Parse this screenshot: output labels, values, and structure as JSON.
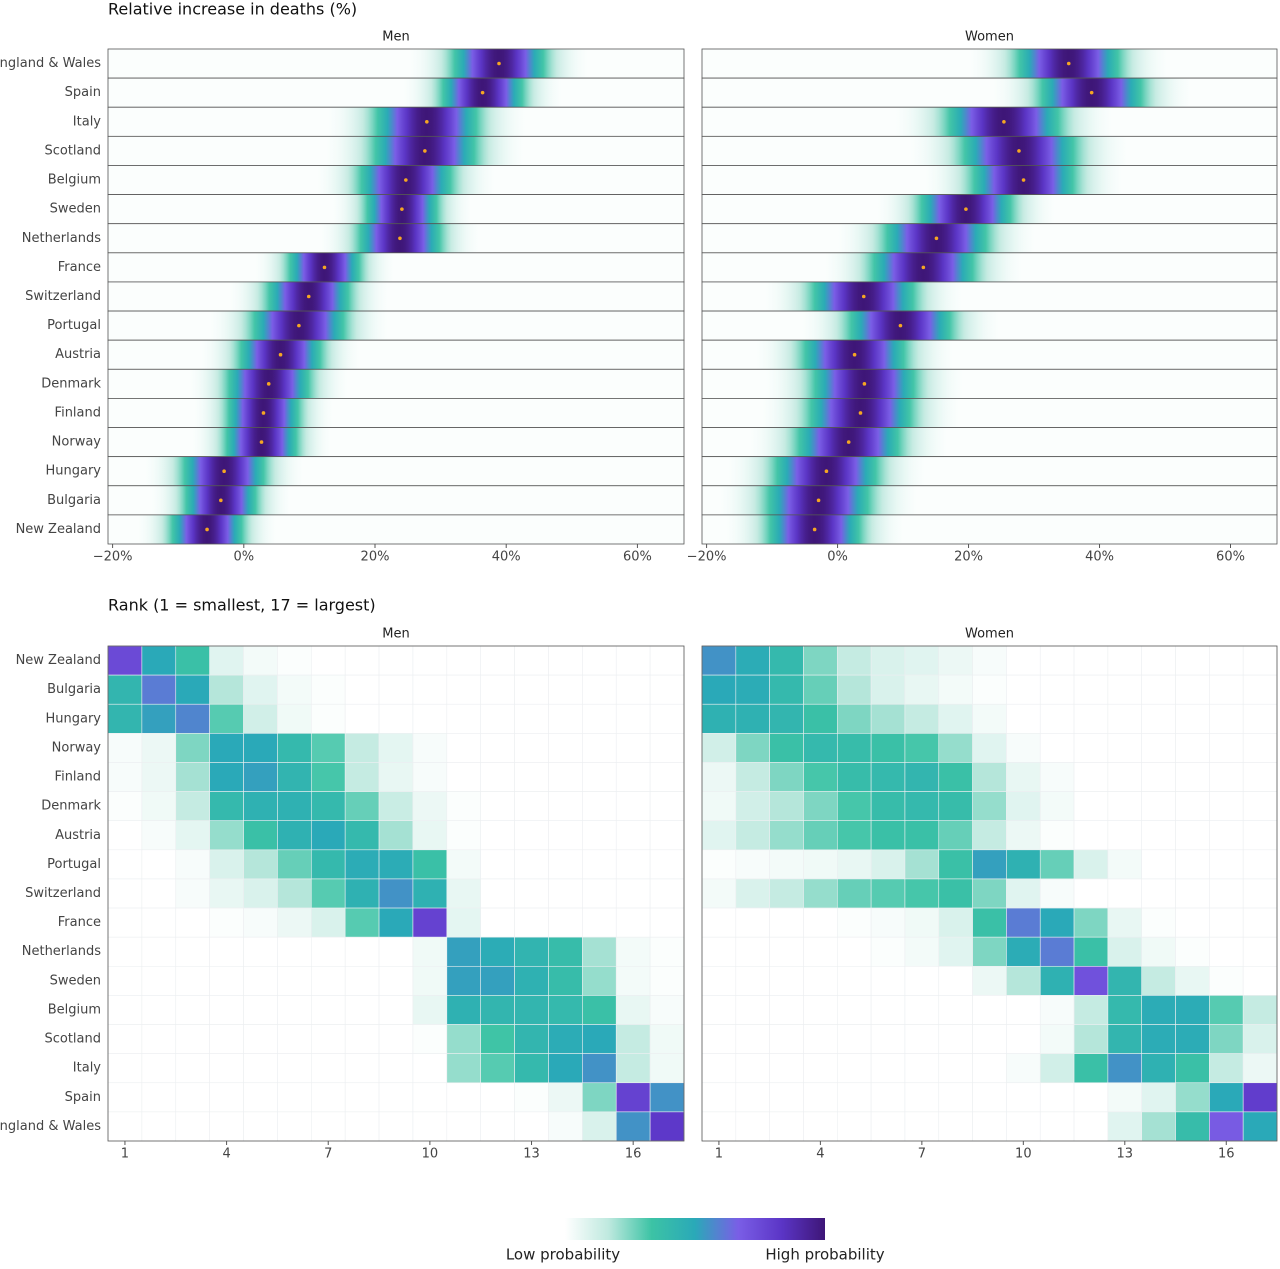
{
  "chart_data": [
    {
      "type": "density-strip",
      "title": "Relative increase in deaths (%)",
      "categories": [
        "England & Wales",
        "Spain",
        "Italy",
        "Scotland",
        "Belgium",
        "Sweden",
        "Netherlands",
        "France",
        "Switzerland",
        "Portugal",
        "Austria",
        "Denmark",
        "Finland",
        "Norway",
        "Hungary",
        "Bulgaria",
        "New Zealand"
      ],
      "xlim": [
        -20.7,
        67.1
      ],
      "xticks": [
        {
          "value": -20,
          "label": "−20%"
        },
        {
          "value": 0,
          "label": "0%"
        },
        {
          "value": 20,
          "label": "20%"
        },
        {
          "value": 40,
          "label": "40%"
        },
        {
          "value": 60,
          "label": "60%"
        }
      ],
      "point_color": "#f5a623",
      "colorscale": [
        "#ffffff",
        "#bfe9df",
        "#3cc3a5",
        "#2aa9b8",
        "#7a5ee6",
        "#5b35c6",
        "#3e1677"
      ],
      "panels": [
        {
          "title": "Men",
          "values": [
            38.9,
            36.4,
            27.9,
            27.6,
            24.7,
            24.1,
            23.8,
            12.3,
            9.9,
            8.4,
            5.6,
            3.8,
            3.0,
            2.7,
            -3.0,
            -3.5,
            -5.6
          ],
          "spread": [
            4.5,
            4,
            5,
            5,
            4.5,
            3.5,
            4,
            3.5,
            4,
            4.5,
            4,
            4,
            3.5,
            3.5,
            4,
            3.5,
            3.5
          ]
        },
        {
          "title": "Women",
          "values": [
            35.3,
            38.8,
            25.4,
            27.7,
            28.4,
            19.6,
            15.1,
            13.1,
            4.0,
            9.6,
            2.6,
            4.1,
            3.5,
            1.7,
            -1.7,
            -2.9,
            -3.5
          ],
          "spread": [
            5,
            5,
            5.5,
            5.5,
            5,
            4.5,
            5,
            5,
            5,
            5,
            5,
            5,
            5,
            5,
            5,
            5,
            4.5
          ]
        }
      ]
    },
    {
      "type": "heatmap",
      "title": "Rank (1 = smallest, 17 = largest)",
      "categories": [
        "New Zealand",
        "Bulgaria",
        "Hungary",
        "Norway",
        "Finland",
        "Denmark",
        "Austria",
        "Portugal",
        "Switzerland",
        "France",
        "Netherlands",
        "Sweden",
        "Belgium",
        "Scotland",
        "Italy",
        "Spain",
        "England & Wales"
      ],
      "x": [
        1,
        2,
        3,
        4,
        5,
        6,
        7,
        8,
        9,
        10,
        11,
        12,
        13,
        14,
        15,
        16,
        17
      ],
      "xlim": [
        0.5,
        17.5
      ],
      "xticks": [
        1,
        4,
        7,
        10,
        13,
        16
      ],
      "colorscale": [
        "#ffffff",
        "#bfe9df",
        "#3cc3a5",
        "#2aa9b8",
        "#7a5ee6",
        "#5b35c6",
        "#3e1677"
      ],
      "legend": {
        "low": "Low probability",
        "high": "High probability"
      },
      "panels": [
        {
          "title": "Men",
          "values": [
            [
              75,
              50,
              35,
              8,
              3,
              1,
              0,
              0,
              0,
              0,
              0,
              0,
              0,
              0,
              0,
              0,
              0
            ],
            [
              42,
              60,
              50,
              18,
              8,
              3,
              1,
              0,
              0,
              0,
              0,
              0,
              0,
              0,
              0,
              0,
              0
            ],
            [
              42,
              52,
              58,
              30,
              12,
              4,
              1,
              0,
              0,
              0,
              0,
              0,
              0,
              0,
              0,
              0,
              0
            ],
            [
              2,
              5,
              25,
              50,
              50,
              40,
              30,
              15,
              7,
              2,
              0,
              0,
              0,
              0,
              0,
              0,
              0
            ],
            [
              2,
              5,
              20,
              50,
              52,
              43,
              32,
              15,
              6,
              2,
              0,
              0,
              0,
              0,
              0,
              0,
              0
            ],
            [
              1,
              4,
              15,
              40,
              45,
              45,
              40,
              28,
              14,
              5,
              1,
              0,
              0,
              0,
              0,
              0,
              0
            ],
            [
              0,
              2,
              7,
              22,
              35,
              45,
              50,
              40,
              20,
              6,
              1,
              0,
              0,
              0,
              0,
              0,
              0
            ],
            [
              0,
              0,
              2,
              10,
              18,
              28,
              40,
              48,
              48,
              35,
              3,
              0,
              0,
              0,
              0,
              0,
              0
            ],
            [
              0,
              0,
              2,
              6,
              10,
              18,
              30,
              45,
              55,
              45,
              6,
              0,
              0,
              0,
              0,
              0,
              0
            ],
            [
              0,
              0,
              0,
              1,
              2,
              5,
              10,
              30,
              50,
              78,
              7,
              0,
              0,
              0,
              0,
              0,
              0
            ],
            [
              0,
              0,
              0,
              0,
              0,
              0,
              0,
              0,
              0,
              4,
              52,
              48,
              43,
              38,
              20,
              3,
              1
            ],
            [
              0,
              0,
              0,
              0,
              0,
              0,
              0,
              0,
              0,
              4,
              52,
              52,
              45,
              38,
              22,
              3,
              1
            ],
            [
              0,
              0,
              0,
              0,
              0,
              0,
              0,
              0,
              0,
              6,
              45,
              42,
              42,
              40,
              35,
              6,
              2
            ],
            [
              0,
              0,
              0,
              0,
              0,
              0,
              0,
              0,
              0,
              1,
              22,
              33,
              42,
              48,
              50,
              15,
              4
            ],
            [
              0,
              0,
              0,
              0,
              0,
              0,
              0,
              0,
              0,
              0,
              22,
              30,
              40,
              50,
              55,
              15,
              4
            ],
            [
              0,
              0,
              0,
              0,
              0,
              0,
              0,
              0,
              0,
              0,
              0,
              0,
              1,
              5,
              25,
              78,
              55
            ],
            [
              0,
              0,
              0,
              0,
              0,
              0,
              0,
              0,
              0,
              0,
              0,
              0,
              0,
              2,
              10,
              55,
              82
            ]
          ]
        },
        {
          "title": "Women",
          "values": [
            [
              55,
              48,
              40,
              25,
              15,
              10,
              8,
              5,
              2,
              0,
              0,
              0,
              0,
              0,
              0,
              0,
              0
            ],
            [
              50,
              48,
              40,
              28,
              18,
              10,
              6,
              3,
              1,
              0,
              0,
              0,
              0,
              0,
              0,
              0,
              0
            ],
            [
              45,
              45,
              42,
              35,
              25,
              20,
              15,
              8,
              3,
              0,
              0,
              0,
              0,
              0,
              0,
              0,
              0
            ],
            [
              12,
              25,
              35,
              40,
              38,
              35,
              32,
              22,
              8,
              2,
              0,
              0,
              0,
              0,
              0,
              0,
              0
            ],
            [
              5,
              15,
              25,
              32,
              38,
              40,
              42,
              35,
              18,
              6,
              2,
              0,
              0,
              0,
              0,
              0,
              0
            ],
            [
              4,
              12,
              18,
              25,
              32,
              38,
              40,
              38,
              22,
              8,
              3,
              0,
              0,
              0,
              0,
              0,
              0
            ],
            [
              8,
              15,
              22,
              28,
              32,
              35,
              35,
              28,
              15,
              5,
              1,
              0,
              0,
              0,
              0,
              0,
              0
            ],
            [
              1,
              2,
              3,
              4,
              6,
              10,
              20,
              35,
              52,
              45,
              28,
              10,
              3,
              0,
              0,
              0,
              0
            ],
            [
              3,
              10,
              15,
              22,
              28,
              30,
              32,
              35,
              25,
              8,
              2,
              0,
              0,
              0,
              0,
              0,
              0
            ],
            [
              0,
              0,
              0,
              0,
              1,
              2,
              4,
              10,
              35,
              60,
              50,
              25,
              6,
              1,
              0,
              0,
              0
            ],
            [
              0,
              0,
              0,
              0,
              0,
              1,
              3,
              8,
              25,
              48,
              60,
              35,
              10,
              4,
              1,
              0,
              0
            ],
            [
              0,
              0,
              0,
              0,
              0,
              0,
              0,
              0,
              5,
              18,
              45,
              72,
              42,
              15,
              6,
              1,
              0
            ],
            [
              0,
              0,
              0,
              0,
              0,
              0,
              0,
              0,
              0,
              0,
              2,
              15,
              40,
              48,
              48,
              30,
              15
            ],
            [
              0,
              0,
              0,
              0,
              0,
              0,
              0,
              0,
              0,
              0,
              3,
              18,
              42,
              48,
              48,
              25,
              10
            ],
            [
              0,
              0,
              0,
              0,
              0,
              0,
              0,
              0,
              0,
              2,
              12,
              35,
              55,
              45,
              35,
              15,
              5
            ],
            [
              0,
              0,
              0,
              0,
              0,
              0,
              0,
              0,
              0,
              0,
              0,
              0,
              3,
              8,
              22,
              50,
              80
            ],
            [
              0,
              0,
              0,
              0,
              0,
              0,
              0,
              0,
              0,
              0,
              0,
              0,
              8,
              20,
              38,
              68,
              50
            ]
          ]
        }
      ]
    }
  ]
}
